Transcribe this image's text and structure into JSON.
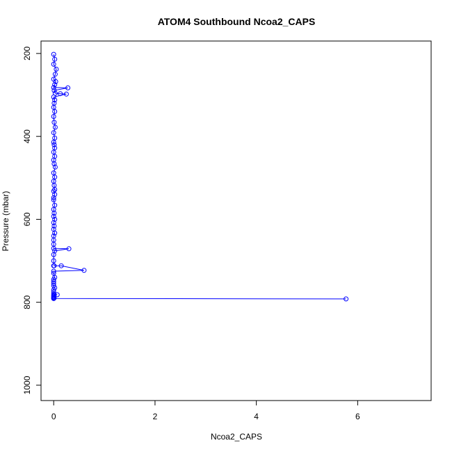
{
  "chart_data": {
    "type": "line",
    "title": "ATOM4 Southbound Ncoa2_CAPS",
    "xlabel": "Ncoa2_CAPS",
    "ylabel": "Pressure (mbar)",
    "xlim": [
      -0.25,
      7.45
    ],
    "ylim": [
      1037,
      170
    ],
    "y_reversed": true,
    "grid": false,
    "x_ticks": [
      0,
      2,
      4,
      6
    ],
    "x_tick_labels": [
      "0",
      "2",
      "4",
      "6"
    ],
    "y_ticks": [
      200,
      400,
      600,
      800,
      1000
    ],
    "y_tick_labels": [
      "200",
      "400",
      "600",
      "800",
      "1000"
    ],
    "colors": {
      "series": "#0000ff",
      "axis": "#000000"
    },
    "series": [
      {
        "marker": "open-circle",
        "x": [
          0.0,
          0.02,
          0.0,
          0.05,
          0.03,
          0.0,
          0.04,
          0.02,
          0.0,
          0.01,
          0.03,
          0.0,
          0.02,
          0.01,
          0.0,
          0.02,
          0.0,
          0.01,
          0.03,
          0.0,
          0.02,
          0.0,
          0.01,
          0.02,
          0.0,
          0.02,
          0.0,
          0.01,
          0.03,
          0.0,
          0.02,
          0.0,
          0.01,
          0.02,
          0.0,
          0.02,
          0.0,
          0.0,
          0.02,
          0.0,
          0.01,
          0.0,
          0.02,
          0.0,
          0.01,
          0.0,
          0.02,
          0.0,
          0.0,
          0.0,
          0.0,
          0.02,
          0.0,
          0.0,
          0.01,
          0.0,
          0.0,
          0.0,
          0.02,
          0.0,
          0.0,
          0.0,
          0.0,
          0.02,
          0.0,
          0.0,
          0.0,
          0.01,
          0.0,
          0.0,
          0.0,
          0.01,
          0.0,
          0.0,
          0.0
        ],
        "y": [
          202,
          214,
          226,
          238,
          250,
          262,
          268,
          275,
          282,
          289,
          296,
          305,
          312,
          320,
          330,
          340,
          352,
          366,
          378,
          391,
          404,
          414,
          420,
          428,
          438,
          448,
          457,
          466,
          474,
          488,
          498,
          508,
          518,
          528,
          532,
          540,
          548,
          553,
          566,
          576,
          585,
          593,
          600,
          608,
          616,
          624,
          633,
          640,
          650,
          660,
          670,
          676,
          685,
          700,
          712,
          712,
          725,
          730,
          740,
          745,
          750,
          755,
          760,
          765,
          770,
          775,
          780,
          782,
          784,
          786,
          788,
          790,
          791,
          791,
          790
        ],
        "connect_order_note": "",
        "extra_points": {
          "x": [
            0.28,
            0.13,
            0.25,
            0.3,
            0.15,
            0.6,
            0.07,
            5.77
          ],
          "y": [
            283,
            297,
            298,
            671,
            712,
            723,
            782,
            792
          ]
        }
      }
    ]
  }
}
